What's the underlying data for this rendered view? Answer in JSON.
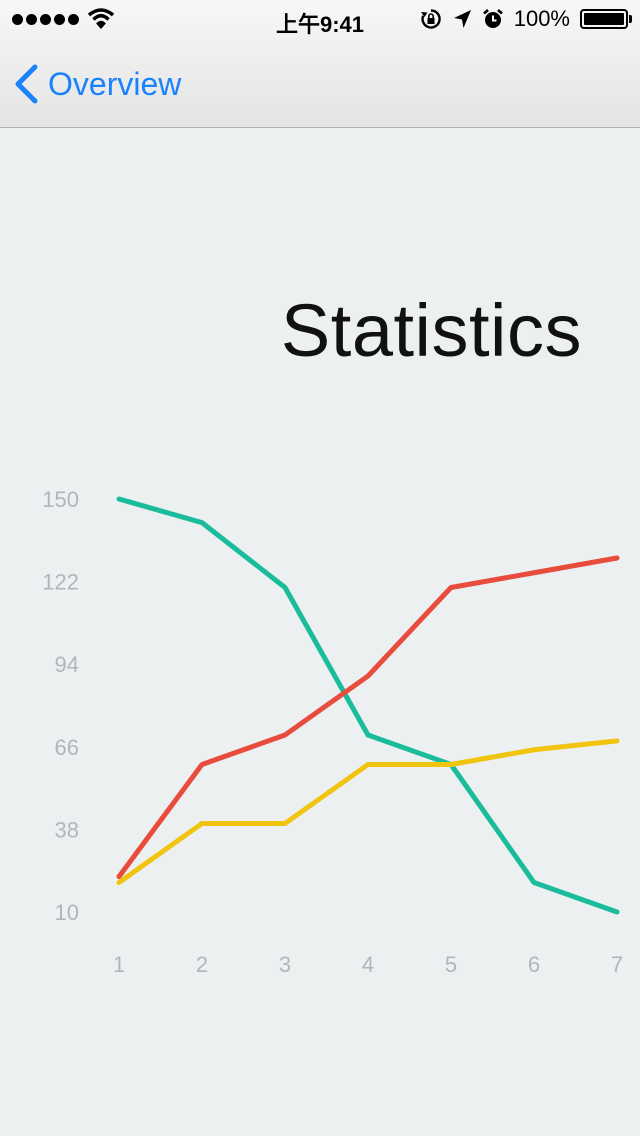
{
  "status_bar": {
    "signal_icon": "signal-dots-icon",
    "wifi_icon": "wifi-icon",
    "time": "上午9:41",
    "lock_icon": "rotation-lock-icon",
    "location_icon": "location-arrow-icon",
    "alarm_icon": "alarm-clock-icon",
    "battery_percent": "100%",
    "battery_icon": "battery-icon"
  },
  "nav": {
    "back_icon": "chevron-left-icon",
    "back_label": "Overview"
  },
  "page": {
    "title": "Statistics"
  },
  "colors": {
    "accent": "#1a82fb",
    "background": "#ecf0f1",
    "tick_text": "#b3b6b8"
  },
  "chart_data": {
    "type": "line",
    "title": "Statistics",
    "xlabel": "",
    "ylabel": "",
    "x": [
      1,
      2,
      3,
      4,
      5,
      6,
      7
    ],
    "x_ticks": [
      "1",
      "2",
      "3",
      "4",
      "5",
      "6",
      "7"
    ],
    "y_ticks": [
      "150",
      "122",
      "94",
      "66",
      "38",
      "10"
    ],
    "ylim": [
      10,
      150
    ],
    "grid": false,
    "legend": "none",
    "series": [
      {
        "color": "#1abc9c",
        "values": [
          150,
          142,
          120,
          70,
          60,
          20,
          10
        ]
      },
      {
        "color": "#e74c3c",
        "values": [
          22,
          60,
          70,
          90,
          120,
          125,
          130
        ]
      },
      {
        "color": "#f1c40f",
        "values": [
          20,
          40,
          40,
          60,
          60,
          65,
          68
        ]
      }
    ]
  }
}
